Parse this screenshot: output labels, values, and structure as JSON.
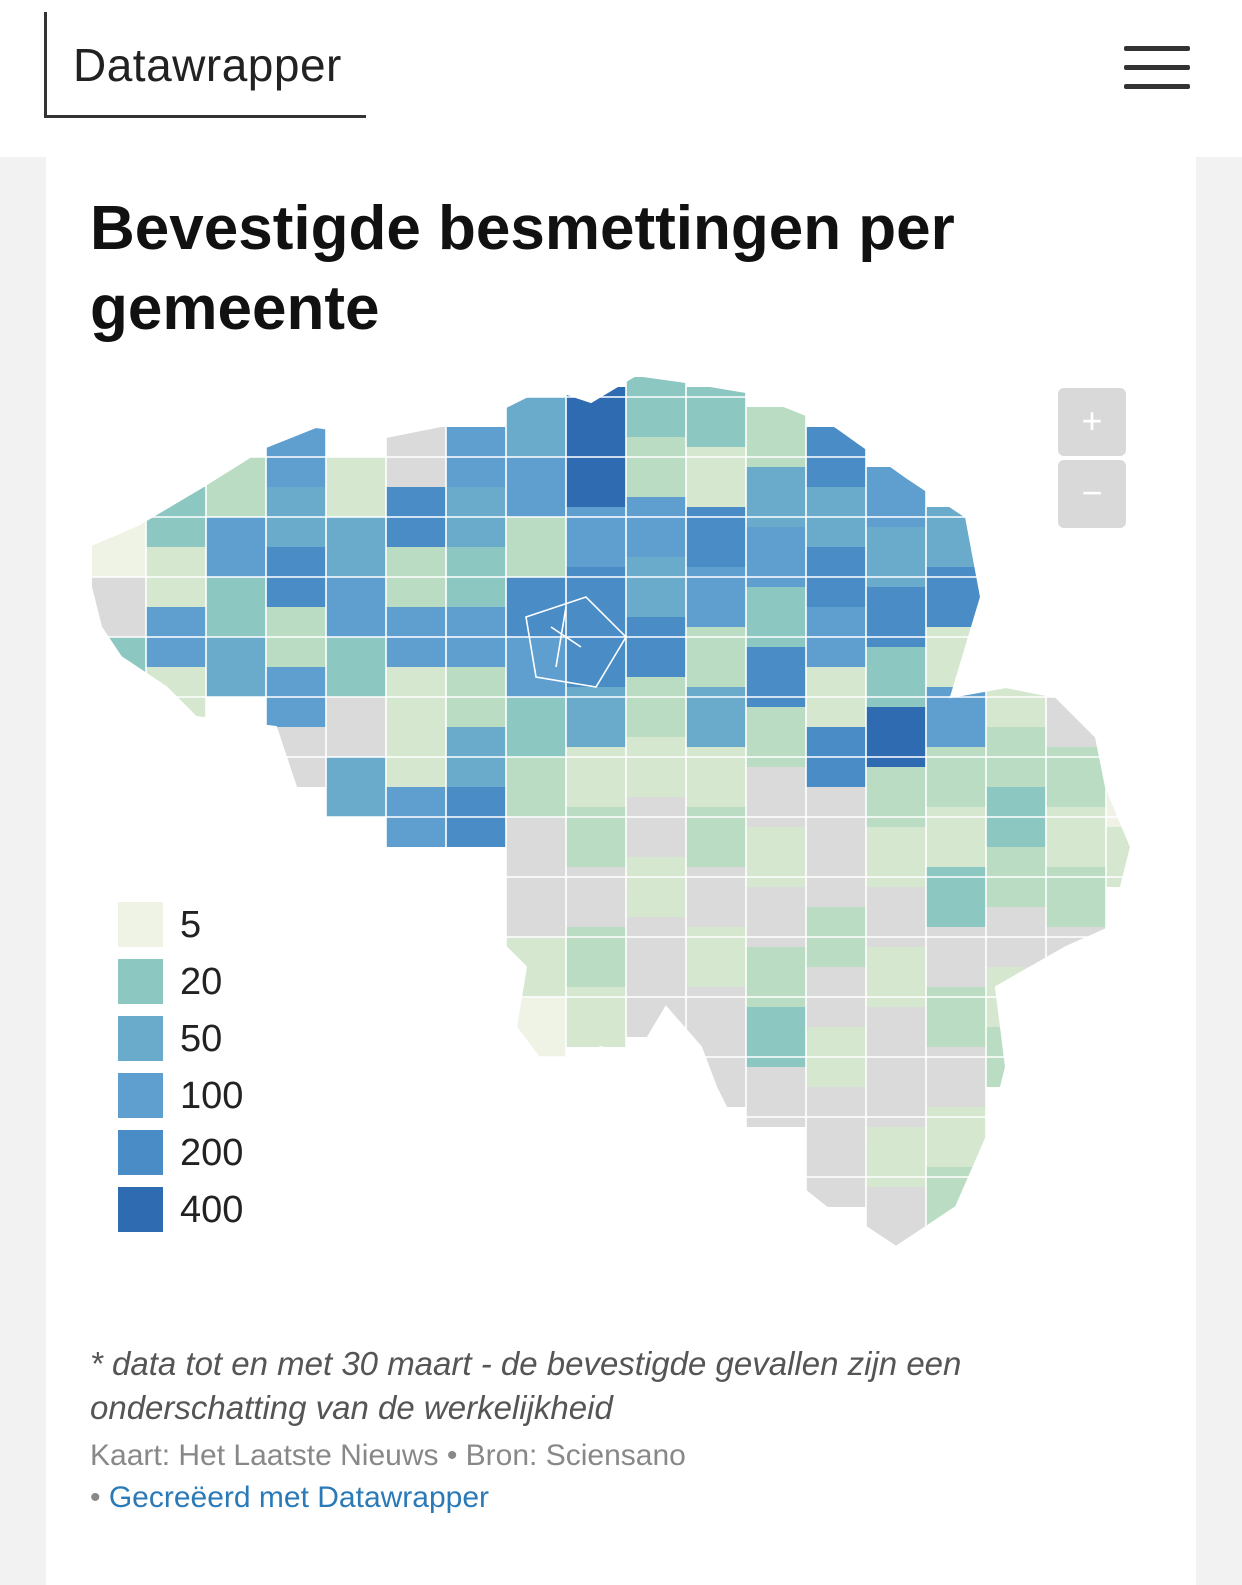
{
  "header": {
    "brand": "Datawrapper",
    "menu_icon": "hamburger-menu-icon"
  },
  "chart": {
    "title": "Bevestigde besmettingen per gemeente",
    "notes": "* data tot en met 30 maart - de bevestigde gevallen zijn een onderschatting van de werkelijkheid",
    "source_line": "Kaart: Het Laatste Nieuws • Bron: Sciensano",
    "credit_prefix": "• ",
    "credit_link": "Gecreëerd met Datawrapper"
  },
  "map_controls": {
    "zoom_in": "+",
    "zoom_out": "−"
  },
  "legend": [
    {
      "label": "5",
      "color": "#eff3e6"
    },
    {
      "label": "20",
      "color": "#8cc7c2"
    },
    {
      "label": "50",
      "color": "#6aaacb"
    },
    {
      "label": "100",
      "color": "#5e9fd0"
    },
    {
      "label": "200",
      "color": "#4a8cc6"
    },
    {
      "label": "400",
      "color": "#2f6bb0"
    }
  ],
  "colors": {
    "no_data": "#dadada",
    "light_green": "#d6e7cf",
    "mid_green": "#b9dcc2",
    "teal": "#9bd0c8",
    "blue_light": "#7ab5d4"
  }
}
